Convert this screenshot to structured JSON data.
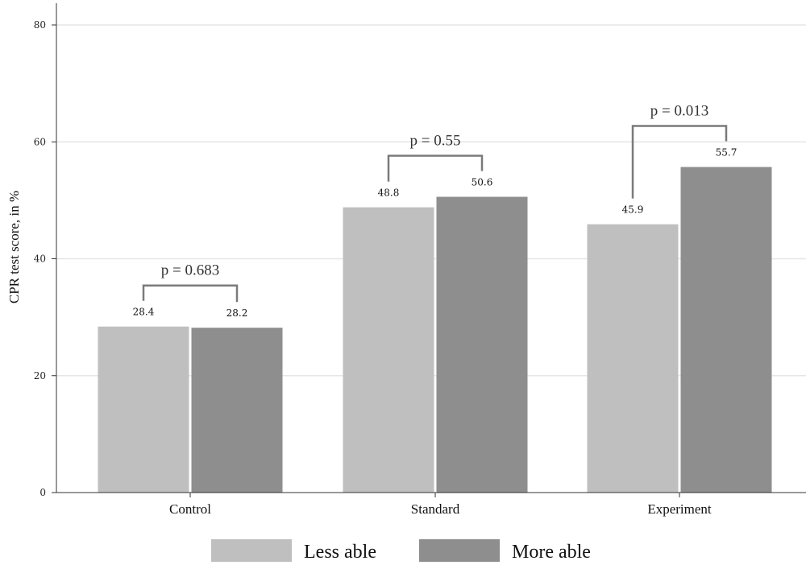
{
  "chart_data": {
    "type": "bar",
    "title": "",
    "xlabel": "",
    "ylabel": "CPR test score, in %",
    "ylim": [
      0,
      80
    ],
    "yticks": [
      0,
      20,
      40,
      60,
      80
    ],
    "grid": true,
    "legend_position": "bottom",
    "categories": [
      "Control",
      "Standard",
      "Experiment"
    ],
    "series": [
      {
        "name": "Less able",
        "color": "#bfbfbf",
        "values": [
          28.4,
          48.8,
          45.9
        ],
        "labels": [
          "28.4",
          "48.8",
          "45.9"
        ]
      },
      {
        "name": "More able",
        "color": "#8e8e8e",
        "values": [
          28.2,
          50.6,
          55.7
        ],
        "labels": [
          "28.2",
          "50.6",
          "55.7"
        ]
      }
    ],
    "annotations": [
      {
        "category": "Control",
        "text": "p = 0.683"
      },
      {
        "category": "Standard",
        "text": "p = 0.55"
      },
      {
        "category": "Experiment",
        "text": "p = 0.013"
      }
    ]
  }
}
